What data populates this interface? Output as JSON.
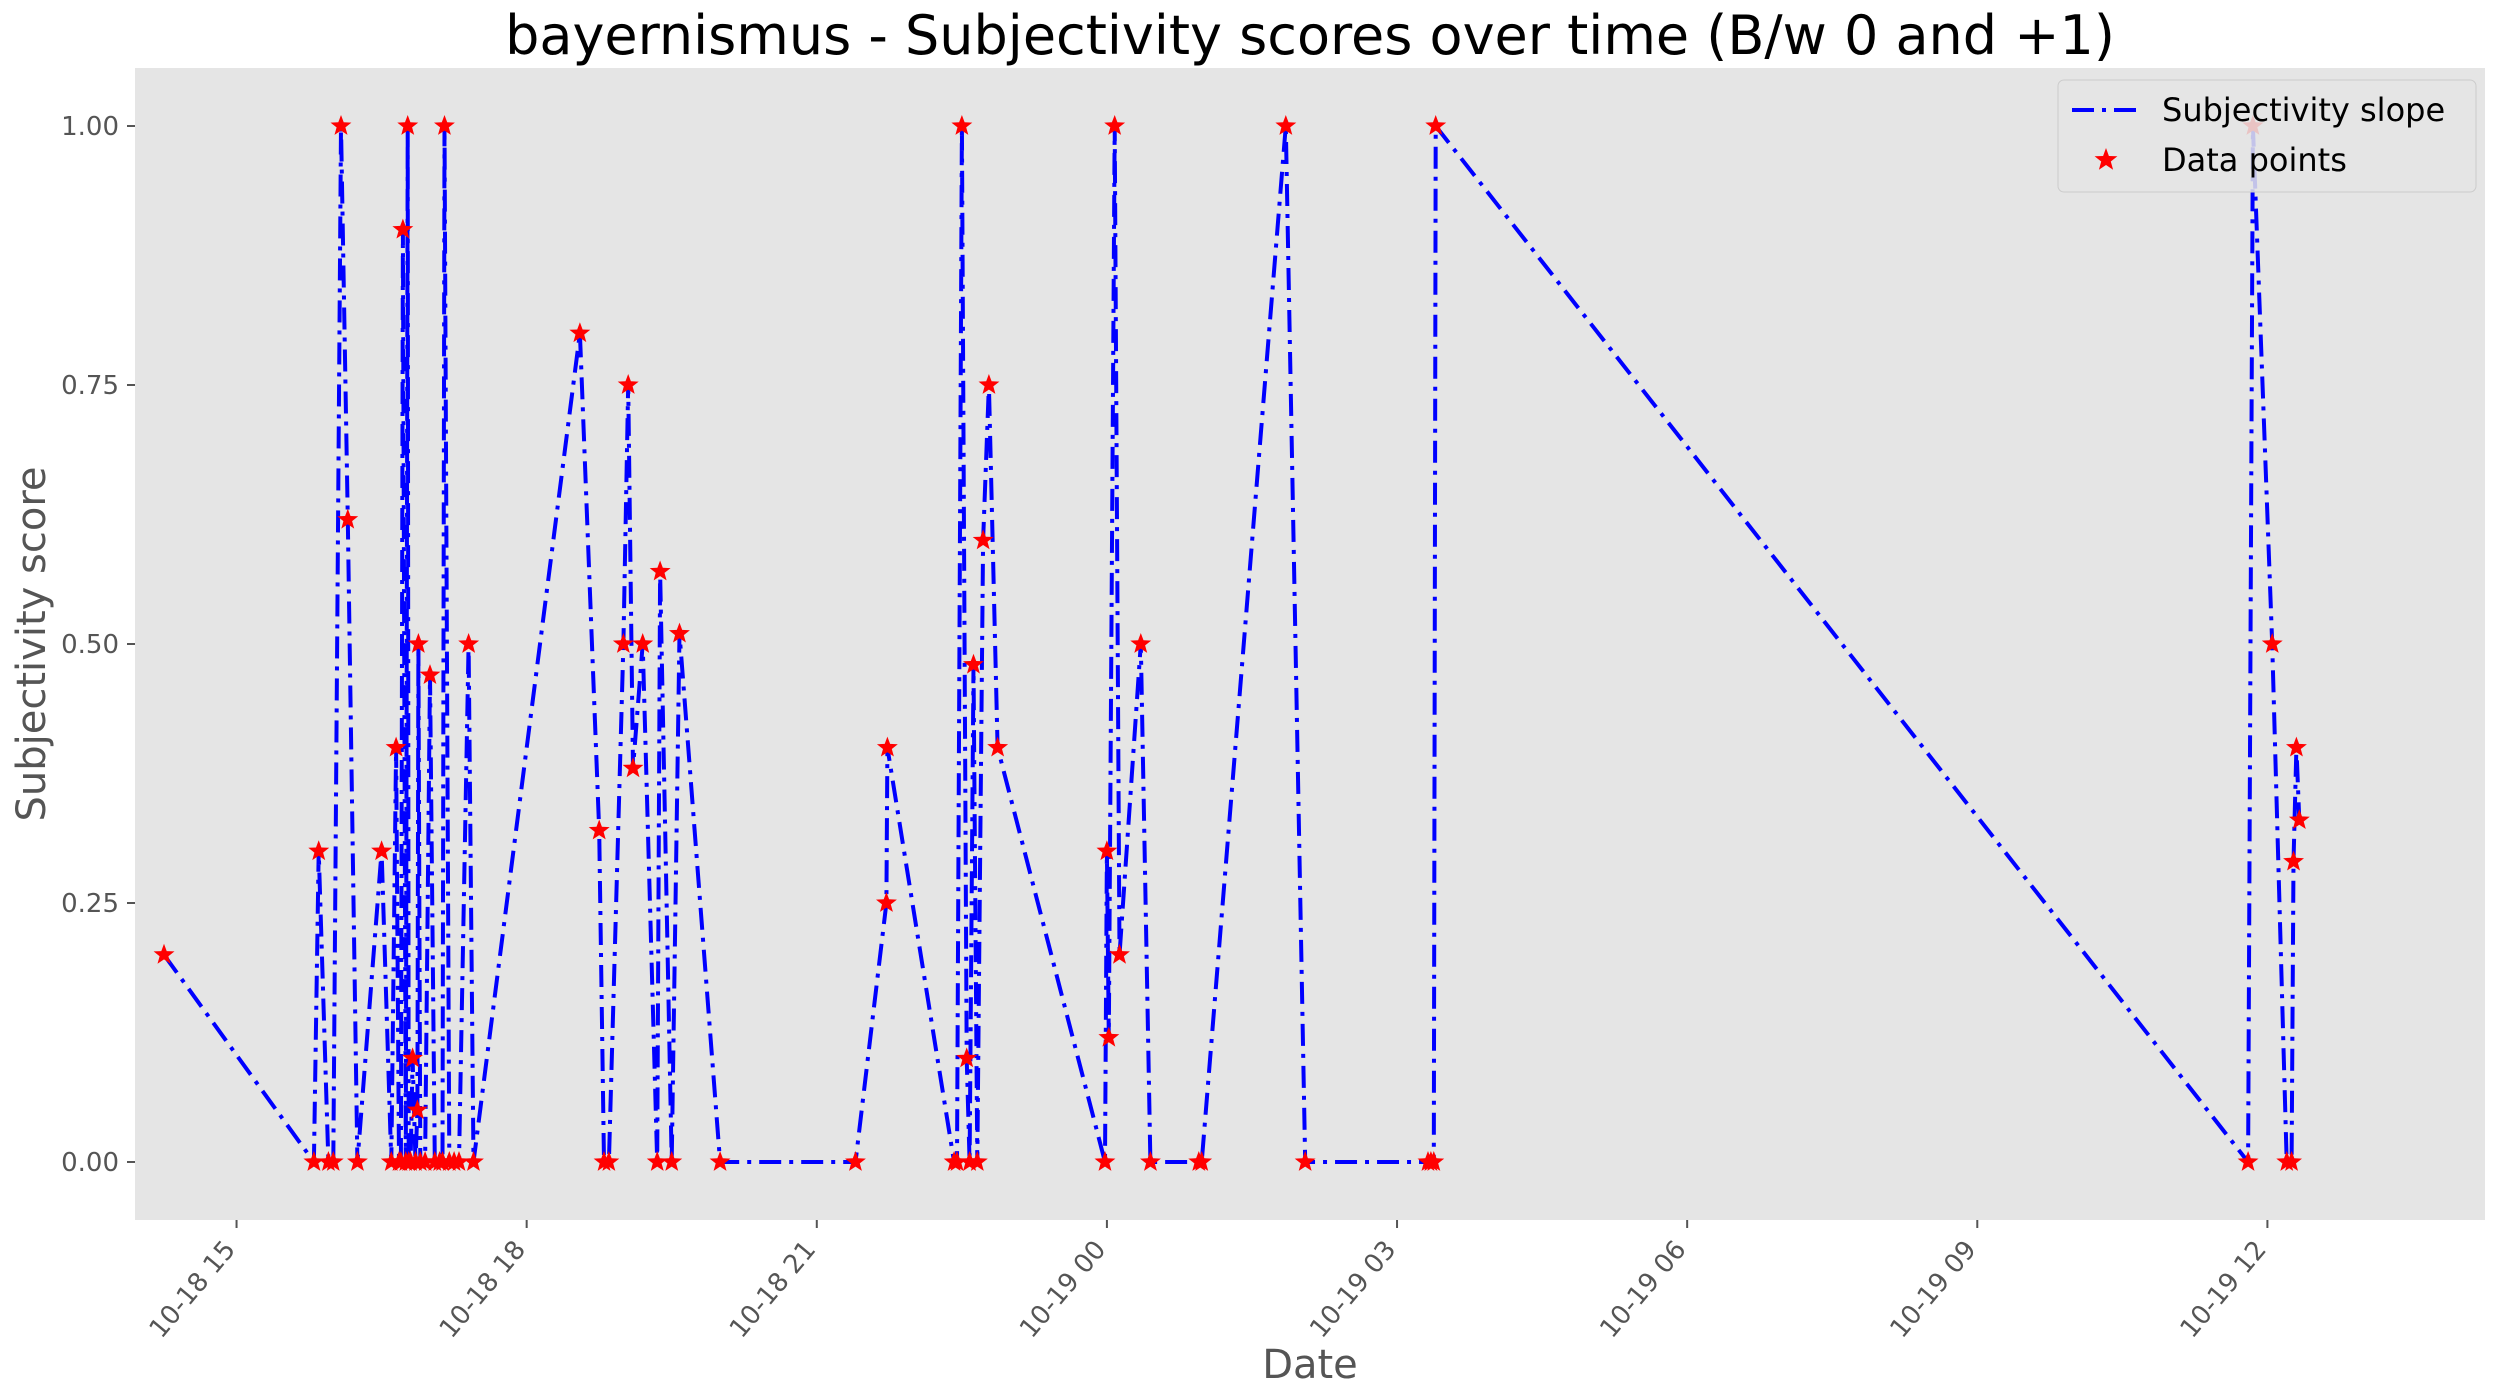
{
  "chart_data": {
    "type": "line",
    "title": "bayernismus - Subjectivity scores over time (B/w 0 and +1)",
    "xlabel": "Date",
    "ylabel": "Subjectivity score",
    "x_tick_labels": [
      "10-18 15",
      "10-18 18",
      "10-18 21",
      "10-19 00",
      "10-19 03",
      "10-19 06",
      "10-19 09",
      "10-19 12"
    ],
    "x_tick_hours": [
      15,
      18,
      21,
      24,
      27,
      30,
      33,
      36
    ],
    "y_ticks": [
      0.0,
      0.25,
      0.5,
      0.75,
      1.0
    ],
    "y_tick_labels": [
      "0.00",
      "0.25",
      "0.50",
      "0.75",
      "1.00"
    ],
    "xlim_hours": [
      13.95,
      38.25
    ],
    "ylim": [
      -0.056,
      1.056
    ],
    "grid": false,
    "legend_position": "top-right",
    "colors": {
      "line": "#0000ff",
      "marker": "#ff0000",
      "plot_bg": "#e5e5e5"
    },
    "series": [
      {
        "name": "Subjectivity slope",
        "style": "dash-dot line"
      },
      {
        "name": "Data points",
        "style": "star markers"
      }
    ],
    "x_hours": [
      14.25,
      15.8,
      15.85,
      15.95,
      16.0,
      16.08,
      16.15,
      16.25,
      16.5,
      16.6,
      16.65,
      16.68,
      16.7,
      16.72,
      16.75,
      16.77,
      16.78,
      16.8,
      16.82,
      16.85,
      16.87,
      16.88,
      16.9,
      16.95,
      17.0,
      17.05,
      17.1,
      17.13,
      17.15,
      17.2,
      17.25,
      17.3,
      17.4,
      17.45,
      18.55,
      18.75,
      18.8,
      18.85,
      19.0,
      19.05,
      19.1,
      19.2,
      19.35,
      19.38,
      19.5,
      19.58,
      20.0,
      21.4,
      21.72,
      21.73,
      22.42,
      22.45,
      22.5,
      22.55,
      22.58,
      22.62,
      22.66,
      22.72,
      22.78,
      22.87,
      23.98,
      24.0,
      24.02,
      24.08,
      24.13,
      24.35,
      24.45,
      24.95,
      24.98,
      25.85,
      26.05,
      27.32,
      27.35,
      27.38,
      27.4,
      35.8,
      35.85,
      36.05,
      36.2,
      36.25,
      36.27,
      36.3,
      36.33
    ]
  },
  "y_values": [
    0.2,
    0.0,
    0.3,
    0.0,
    0.0,
    1.0,
    0.62,
    0.0,
    0.3,
    0.0,
    0.4,
    0.0,
    0.0,
    0.9,
    0.0,
    1.0,
    0.0,
    0.0,
    0.1,
    0.0,
    0.05,
    0.5,
    0.0,
    0.0,
    0.47,
    0.0,
    0.0,
    0.0,
    1.0,
    0.0,
    0.0,
    0.0,
    0.5,
    0.0,
    0.8,
    0.32,
    0.0,
    0.0,
    0.5,
    0.75,
    0.38,
    0.5,
    0.0,
    0.57,
    0.0,
    0.51,
    0.0,
    0.0,
    0.25,
    0.4,
    0.0,
    0.0,
    1.0,
    0.1,
    0.0,
    0.48,
    0.0,
    0.6,
    0.75,
    0.4,
    0.0,
    0.3,
    0.12,
    1.0,
    0.2,
    0.5,
    0.0,
    0.0,
    0.0,
    1.0,
    0.0,
    0.0,
    0.0,
    0.0,
    1.0,
    0.0,
    1.0,
    0.5,
    0.0,
    0.0,
    0.29,
    0.4,
    0.33
  ]
}
